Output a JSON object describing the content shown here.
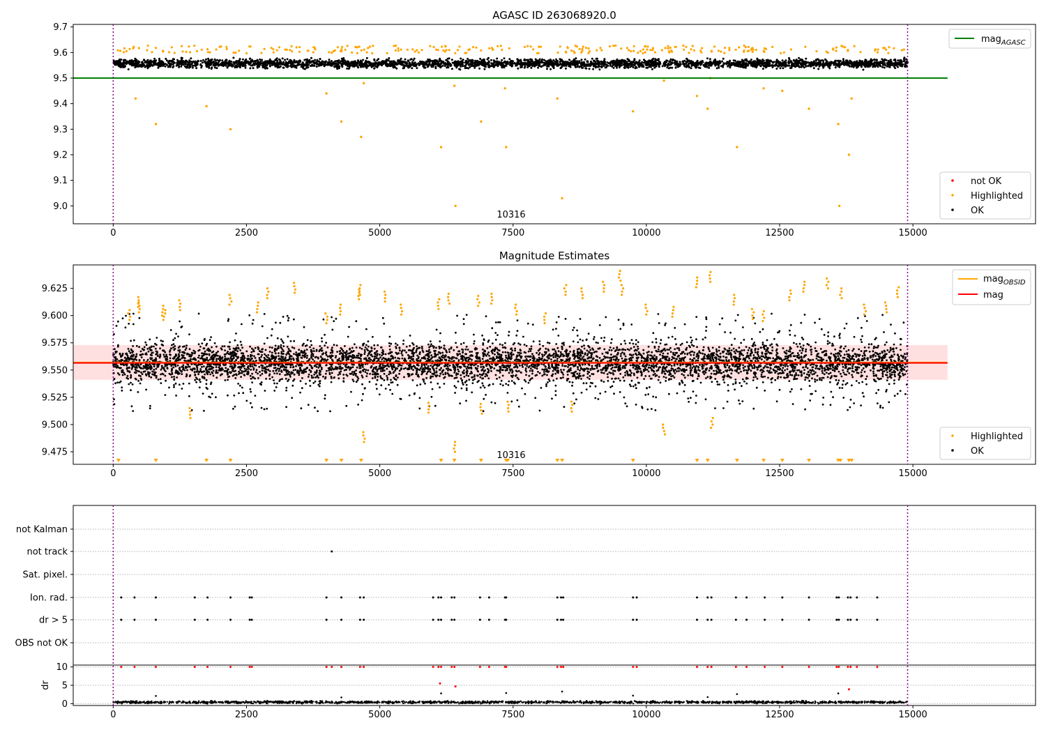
{
  "chart_data": [
    {
      "type": "scatter",
      "title": "AGASC ID 263068920.0",
      "xlim": [
        -750,
        17300
      ],
      "ylim": [
        8.93,
        9.71
      ],
      "xticks": [
        0,
        2500,
        5000,
        7500,
        10000,
        12500,
        15000
      ],
      "yticks": [
        9.0,
        9.1,
        9.2,
        9.3,
        9.4,
        9.5,
        9.6,
        9.7
      ],
      "obs_lines_x": [
        0,
        14900
      ],
      "annotation": {
        "text": "10316",
        "x": 7450,
        "y": 8.97
      },
      "lines": [
        {
          "name": "mag_AGASC",
          "color": "#008000",
          "x": [
            -750,
            15650
          ],
          "y": [
            9.5,
            9.5
          ]
        }
      ],
      "series": [
        {
          "name": "not OK",
          "color": "#ff0000",
          "points": []
        },
        {
          "name": "Highlighted",
          "color": "#ffa500",
          "points": [
            [
              420,
              9.42
            ],
            [
              800,
              9.32
            ],
            [
              1750,
              9.39
            ],
            [
              2200,
              9.3
            ],
            [
              4000,
              9.44
            ],
            [
              4280,
              9.33
            ],
            [
              4650,
              9.27
            ],
            [
              4700,
              9.48
            ],
            [
              6150,
              9.23
            ],
            [
              6400,
              9.47
            ],
            [
              6420,
              9.0
            ],
            [
              6900,
              9.33
            ],
            [
              7350,
              9.46
            ],
            [
              7370,
              9.23
            ],
            [
              8330,
              9.42
            ],
            [
              8420,
              9.03
            ],
            [
              9750,
              9.37
            ],
            [
              10330,
              9.49
            ],
            [
              10950,
              9.43
            ],
            [
              11150,
              9.38
            ],
            [
              11200,
              9.5
            ],
            [
              11700,
              9.23
            ],
            [
              12200,
              9.46
            ],
            [
              12550,
              9.45
            ],
            [
              13050,
              9.38
            ],
            [
              13600,
              9.32
            ],
            [
              13620,
              9.0
            ],
            [
              13800,
              9.2
            ],
            [
              13850,
              9.42
            ]
          ]
        },
        {
          "name": "OK",
          "color": "#000000",
          "band": {
            "x": [
              0,
              14900
            ],
            "y_center": 9.557,
            "sigma": 0.013
          }
        }
      ],
      "legends": [
        {
          "position": "upper right",
          "entries": [
            {
              "label": "mag",
              "subscript": "AGASC",
              "color": "#008000",
              "kind": "line"
            }
          ]
        },
        {
          "position": "lower right",
          "entries": [
            {
              "label": "not OK",
              "color": "#ff0000",
              "kind": "dot"
            },
            {
              "label": "Highlighted",
              "color": "#ffa500",
              "kind": "dot"
            },
            {
              "label": "OK",
              "color": "#000000",
              "kind": "dot"
            }
          ]
        }
      ]
    },
    {
      "type": "scatter",
      "title": "Magnitude Estimates",
      "xlim": [
        -750,
        17300
      ],
      "ylim": [
        9.4635,
        9.6465
      ],
      "xticks": [
        0,
        2500,
        5000,
        7500,
        10000,
        12500,
        15000
      ],
      "yticks": [
        9.475,
        9.5,
        9.525,
        9.55,
        9.575,
        9.6,
        9.625
      ],
      "obs_lines_x": [
        0,
        14900
      ],
      "annotation": {
        "text": "10316",
        "x": 7450,
        "y": 9.4695
      },
      "lines": [
        {
          "name": "mag_OBSID",
          "color": "#ffa500",
          "x": [
            -750,
            15650
          ],
          "y": [
            9.557,
            9.557
          ]
        },
        {
          "name": "mag",
          "color": "#ff0000",
          "x": [
            -750,
            15650
          ],
          "y": [
            9.5565,
            9.5565
          ]
        }
      ],
      "band": {
        "color": "#ff0000",
        "opacity": 0.12,
        "x": [
          -750,
          15650
        ],
        "y": [
          9.541,
          9.573
        ]
      },
      "series": [
        {
          "name": "Highlighted",
          "color": "#ffa500",
          "points": [
            [
              300,
              9.605
            ],
            [
              480,
              9.617
            ],
            [
              500,
              9.612
            ],
            [
              920,
              9.609
            ],
            [
              960,
              9.605
            ],
            [
              1250,
              9.614
            ],
            [
              1450,
              9.506
            ],
            [
              2200,
              9.619
            ],
            [
              2700,
              9.612
            ],
            [
              2900,
              9.625
            ],
            [
              3400,
              9.63
            ],
            [
              4000,
              9.602
            ],
            [
              4270,
              9.61
            ],
            [
              4600,
              9.624
            ],
            [
              4620,
              9.628
            ],
            [
              4700,
              9.484
            ],
            [
              5100,
              9.622
            ],
            [
              5400,
              9.61
            ],
            [
              5900,
              9.511
            ],
            [
              6100,
              9.615
            ],
            [
              6300,
              9.62
            ],
            [
              6400,
              9.475
            ],
            [
              6850,
              9.618
            ],
            [
              6900,
              9.51
            ],
            [
              7100,
              9.62
            ],
            [
              7400,
              9.512
            ],
            [
              7550,
              9.61
            ],
            [
              8100,
              9.602
            ],
            [
              8480,
              9.628
            ],
            [
              8600,
              9.512
            ],
            [
              8800,
              9.625
            ],
            [
              9200,
              9.631
            ],
            [
              9500,
              9.641
            ],
            [
              9550,
              9.628
            ],
            [
              10000,
              9.61
            ],
            [
              10330,
              9.491
            ],
            [
              10500,
              9.608
            ],
            [
              10950,
              9.635
            ],
            [
              11200,
              9.64
            ],
            [
              11230,
              9.497
            ],
            [
              11650,
              9.619
            ],
            [
              12000,
              9.606
            ],
            [
              12200,
              9.604
            ],
            [
              12700,
              9.623
            ],
            [
              12950,
              9.631
            ],
            [
              13400,
              9.634
            ],
            [
              13650,
              9.625
            ],
            [
              14100,
              9.61
            ],
            [
              14500,
              9.612
            ],
            [
              14720,
              9.626
            ]
          ]
        },
        {
          "name": "OK",
          "color": "#000000",
          "band": {
            "x": [
              0,
              14900
            ],
            "y_center": 9.557,
            "sigma": 0.014
          }
        }
      ],
      "lower_markers": {
        "color": "#ffa500",
        "x": [
          100,
          800,
          1750,
          2200,
          4000,
          4280,
          4650,
          6150,
          6400,
          6900,
          7370,
          7400,
          8330,
          8420,
          9750,
          10950,
          11150,
          11700,
          12200,
          12550,
          13050,
          13600,
          13640,
          13800,
          13850
        ]
      },
      "legends": [
        {
          "position": "upper right",
          "entries": [
            {
              "label": "mag",
              "subscript": "OBSID",
              "color": "#ffa500",
              "kind": "line"
            },
            {
              "label": "mag",
              "color": "#ff0000",
              "kind": "line"
            }
          ]
        },
        {
          "position": "lower right",
          "entries": [
            {
              "label": "Highlighted",
              "color": "#ffa500",
              "kind": "dot"
            },
            {
              "label": "OK",
              "color": "#000000",
              "kind": "dot"
            }
          ]
        }
      ]
    },
    {
      "type": "scatter",
      "title": "",
      "xlim": [
        -750,
        17300
      ],
      "xticks": [
        0,
        2500,
        5000,
        7500,
        10000,
        12500,
        15000
      ],
      "obs_lines_x": [
        0,
        14900
      ],
      "flag_rows": [
        "not Kalman",
        "not track",
        "Sat. pixel.",
        "Ion. rad.",
        "dr > 5",
        "OBS not OK"
      ],
      "flag_points": {
        "not track": [
          4100
        ],
        "Ion. rad.": [
          150,
          400,
          800,
          1530,
          1770,
          2200,
          2560,
          2600,
          4000,
          4280,
          4630,
          4700,
          6000,
          6100,
          6150,
          6350,
          6400,
          6880,
          7050,
          7350,
          7370,
          8330,
          8400,
          8440,
          9750,
          9820,
          10950,
          11150,
          11220,
          11680,
          11880,
          12220,
          12550,
          13050,
          13570,
          13610,
          13780,
          13830,
          13950,
          14330
        ],
        "dr > 5": [
          150,
          400,
          800,
          1530,
          1770,
          2200,
          2560,
          2600,
          4000,
          4280,
          4630,
          4700,
          6000,
          6100,
          6150,
          6350,
          6400,
          6880,
          7050,
          7350,
          7370,
          8330,
          8400,
          8440,
          9750,
          9820,
          10950,
          11150,
          11220,
          11680,
          11880,
          12220,
          12550,
          13050,
          13570,
          13610,
          13780,
          13830,
          13950,
          14330
        ]
      },
      "dr": {
        "ylim": [
          -0.5,
          10.5
        ],
        "yticks": [
          0,
          5,
          10
        ],
        "ylabel": "dr",
        "ok_band": {
          "x": [
            0,
            14900
          ],
          "y_center": 0.4,
          "sigma": 0.25
        },
        "red_points": [
          [
            150,
            10
          ],
          [
            400,
            10
          ],
          [
            800,
            10
          ],
          [
            1530,
            10
          ],
          [
            1770,
            10
          ],
          [
            2200,
            10
          ],
          [
            2560,
            10
          ],
          [
            2600,
            10
          ],
          [
            4000,
            10
          ],
          [
            4100,
            10
          ],
          [
            4280,
            10
          ],
          [
            4630,
            10
          ],
          [
            4700,
            10
          ],
          [
            6000,
            10
          ],
          [
            6100,
            10
          ],
          [
            6150,
            10
          ],
          [
            6130,
            5.5
          ],
          [
            6350,
            10
          ],
          [
            6400,
            10
          ],
          [
            6420,
            4.7
          ],
          [
            6880,
            10
          ],
          [
            7050,
            10
          ],
          [
            7350,
            10
          ],
          [
            7370,
            10
          ],
          [
            8330,
            10
          ],
          [
            8400,
            10
          ],
          [
            8440,
            10
          ],
          [
            9750,
            10
          ],
          [
            9820,
            10
          ],
          [
            10950,
            10
          ],
          [
            11150,
            10
          ],
          [
            11220,
            10
          ],
          [
            11680,
            10
          ],
          [
            11880,
            10
          ],
          [
            12220,
            10
          ],
          [
            12550,
            10
          ],
          [
            13050,
            10
          ],
          [
            13570,
            10
          ],
          [
            13610,
            10
          ],
          [
            13780,
            10
          ],
          [
            13830,
            10
          ],
          [
            13950,
            10
          ],
          [
            14330,
            10
          ],
          [
            13800,
            3.9
          ]
        ],
        "black_points": [
          [
            800,
            2.1
          ],
          [
            6150,
            2.8
          ],
          [
            7370,
            2.9
          ],
          [
            8420,
            3.3
          ],
          [
            9750,
            2.2
          ],
          [
            11700,
            2.6
          ],
          [
            13600,
            2.8
          ],
          [
            11150,
            1.8
          ],
          [
            4280,
            1.7
          ]
        ]
      }
    }
  ]
}
